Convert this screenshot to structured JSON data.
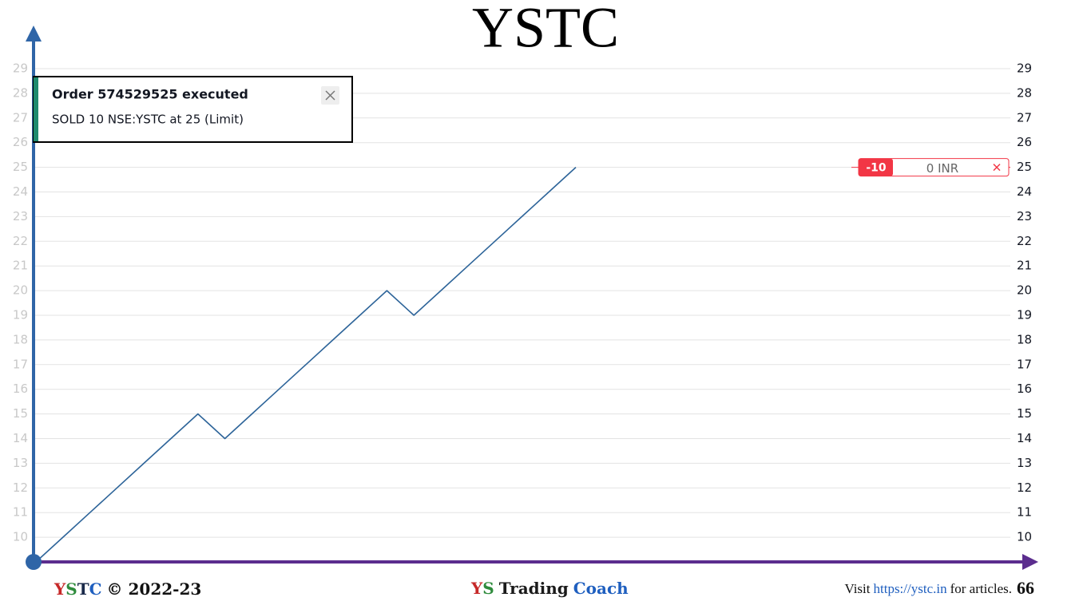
{
  "chart_data": {
    "type": "line",
    "title": "YSTC",
    "series": [
      {
        "color": "#2d6499",
        "values": [
          9,
          10,
          11,
          12,
          13,
          14,
          15,
          14,
          15,
          16,
          17,
          18,
          19,
          20,
          19,
          20,
          21,
          22,
          23,
          24,
          25
        ]
      }
    ],
    "ylim": [
      9,
      29
    ],
    "yticks": [
      10,
      11,
      12,
      13,
      14,
      15,
      16,
      17,
      18,
      19,
      20,
      21,
      22,
      23,
      24,
      25,
      26,
      27,
      28,
      29
    ],
    "grid": true,
    "order_line": {
      "price": 25,
      "quantity": "-10",
      "pnl": "0 INR",
      "color": "#f23645"
    }
  },
  "toast": {
    "title": "Order 574529525 executed",
    "message": "SOLD 10 NSE:YSTC at 25 (Limit)"
  },
  "footer": {
    "brand": [
      "Y",
      "S",
      "T",
      "C"
    ],
    "copyright": "© 2022-23",
    "center": [
      "Y",
      "S",
      "Trading",
      "Coach"
    ],
    "visit": "Visit",
    "url": "https://ystc.in",
    "suffix": "for articles.",
    "page": "66"
  }
}
